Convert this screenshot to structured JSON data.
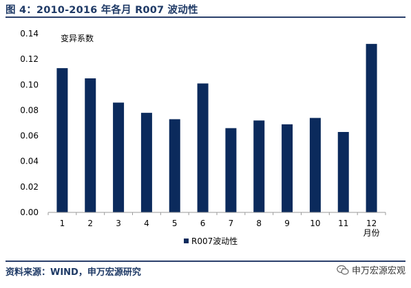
{
  "figure_title": "图 4：2010-2016 年各月 R007 波动性",
  "source_text": "资料来源：WIND，申万宏源研究",
  "watermark": {
    "label": "申万宏源宏观",
    "icon": "wechat-icon"
  },
  "colors": {
    "bar": "#0b2a5c",
    "title": "#1f3a66",
    "rule": "#2a3f6b",
    "axis": "#9a9a9a"
  },
  "chart_data": {
    "type": "bar",
    "categories": [
      "1",
      "2",
      "3",
      "4",
      "5",
      "6",
      "7",
      "8",
      "9",
      "10",
      "11",
      "12"
    ],
    "category_suffix": "月份",
    "series": [
      {
        "name": "R007波动性",
        "values": [
          0.113,
          0.105,
          0.086,
          0.078,
          0.073,
          0.101,
          0.066,
          0.072,
          0.069,
          0.074,
          0.063,
          0.132
        ]
      }
    ],
    "title": "",
    "xlabel": "",
    "ylabel": "",
    "inner_annotation": "变异系数",
    "ylim": [
      0,
      0.14
    ],
    "yticks": [
      "0.00",
      "0.02",
      "0.04",
      "0.06",
      "0.08",
      "0.10",
      "0.12",
      "0.14"
    ],
    "grid": false,
    "legend_position": "bottom"
  }
}
